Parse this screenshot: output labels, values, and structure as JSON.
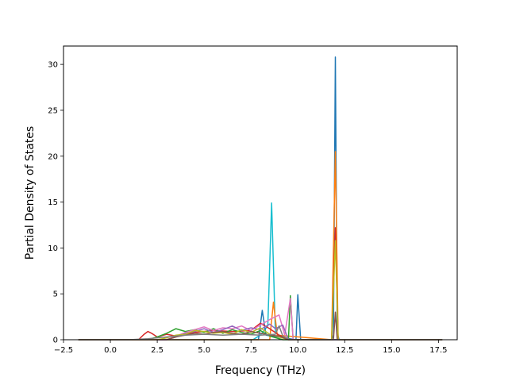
{
  "chart_data": {
    "type": "line",
    "title": "",
    "xlabel": "Frequency (THz)",
    "ylabel": "Partial Density of States",
    "xlim": [
      -2.5,
      18.5
    ],
    "ylim": [
      0,
      32
    ],
    "grid": false,
    "legend": "none",
    "x_ticks": [
      -2.5,
      0.0,
      2.5,
      5.0,
      7.5,
      10.0,
      12.5,
      15.0,
      17.5
    ],
    "x_tick_labels": [
      "−2.5",
      "0.0",
      "2.5",
      "5.0",
      "7.5",
      "10.0",
      "12.5",
      "15.0",
      "17.5"
    ],
    "y_ticks": [
      0,
      5,
      10,
      15,
      20,
      25,
      30
    ],
    "y_tick_labels": [
      "0",
      "5",
      "10",
      "15",
      "20",
      "25",
      "30"
    ],
    "colors": [
      "#1f77b4",
      "#ff7f0e",
      "#2ca02c",
      "#d62728",
      "#9467bd",
      "#8c564b",
      "#e377c2",
      "#7f7f7f",
      "#bcbd22",
      "#17becf"
    ],
    "series": [
      {
        "color": "#17becf",
        "points": [
          [
            -1.7,
            0
          ],
          [
            7.6,
            0
          ],
          [
            8.0,
            0.5
          ],
          [
            8.4,
            1.5
          ],
          [
            8.6,
            14.9
          ],
          [
            8.8,
            0.8
          ],
          [
            9.1,
            0.3
          ],
          [
            9.5,
            0
          ],
          [
            17.7,
            0
          ]
        ]
      },
      {
        "color": "#1f77b4",
        "points": [
          [
            -1.7,
            0
          ],
          [
            7.9,
            0
          ],
          [
            8.1,
            3.2
          ],
          [
            8.3,
            0.5
          ],
          [
            9.9,
            0
          ],
          [
            10.0,
            4.9
          ],
          [
            10.15,
            0
          ],
          [
            11.8,
            0
          ],
          [
            11.9,
            0.5
          ],
          [
            12.0,
            30.8
          ],
          [
            12.1,
            0.8
          ],
          [
            12.2,
            0
          ],
          [
            17.7,
            0
          ]
        ]
      },
      {
        "color": "#ff7f0e",
        "points": [
          [
            -1.7,
            0
          ],
          [
            8.5,
            0
          ],
          [
            8.7,
            4.1
          ],
          [
            8.9,
            0.5
          ],
          [
            11.8,
            0
          ],
          [
            12.0,
            20.5
          ],
          [
            12.15,
            0
          ],
          [
            17.7,
            0
          ]
        ]
      },
      {
        "color": "#d62728",
        "points": [
          [
            -1.7,
            0
          ],
          [
            1.5,
            0
          ],
          [
            1.8,
            0.6
          ],
          [
            2.0,
            0.9
          ],
          [
            2.2,
            0.7
          ],
          [
            2.5,
            0.3
          ],
          [
            3.0,
            0.6
          ],
          [
            3.5,
            0.4
          ],
          [
            4.5,
            0.8
          ],
          [
            5.5,
            1.0
          ],
          [
            6.5,
            0.9
          ],
          [
            7.5,
            1.0
          ],
          [
            8.0,
            1.8
          ],
          [
            8.5,
            1.2
          ],
          [
            9.0,
            0.5
          ],
          [
            9.5,
            0
          ],
          [
            11.8,
            0
          ],
          [
            12.0,
            12.2
          ],
          [
            12.15,
            0
          ],
          [
            17.7,
            0
          ]
        ]
      },
      {
        "color": "#2ca02c",
        "points": [
          [
            -1.7,
            0
          ],
          [
            2.0,
            0
          ],
          [
            2.5,
            0.3
          ],
          [
            3.0,
            0.7
          ],
          [
            3.5,
            1.2
          ],
          [
            4.0,
            0.9
          ],
          [
            4.5,
            1.1
          ],
          [
            5.0,
            0.8
          ],
          [
            5.5,
            1.2
          ],
          [
            6.0,
            0.7
          ],
          [
            6.5,
            1.1
          ],
          [
            7.0,
            0.8
          ],
          [
            7.5,
            0.6
          ],
          [
            8.0,
            1.0
          ],
          [
            8.5,
            0.4
          ],
          [
            9.2,
            0
          ],
          [
            9.5,
            0
          ],
          [
            9.6,
            4.8
          ],
          [
            9.75,
            0
          ],
          [
            17.7,
            0
          ]
        ]
      },
      {
        "color": "#e377c2",
        "points": [
          [
            -1.7,
            0
          ],
          [
            3.0,
            0
          ],
          [
            3.5,
            0.4
          ],
          [
            4.0,
            0.8
          ],
          [
            4.5,
            1.1
          ],
          [
            5.0,
            1.4
          ],
          [
            5.5,
            1.0
          ],
          [
            6.0,
            1.3
          ],
          [
            6.5,
            1.2
          ],
          [
            7.0,
            1.5
          ],
          [
            7.5,
            1.0
          ],
          [
            8.0,
            1.6
          ],
          [
            8.5,
            2.2
          ],
          [
            9.0,
            2.7
          ],
          [
            9.3,
            0.5
          ],
          [
            9.6,
            4.5
          ],
          [
            9.75,
            0
          ],
          [
            17.7,
            0
          ]
        ]
      },
      {
        "color": "#9467bd",
        "points": [
          [
            -1.7,
            0
          ],
          [
            3.0,
            0
          ],
          [
            3.5,
            0.3
          ],
          [
            4.0,
            0.7
          ],
          [
            4.5,
            0.9
          ],
          [
            5.0,
            1.2
          ],
          [
            5.5,
            0.8
          ],
          [
            6.0,
            1.1
          ],
          [
            6.5,
            1.5
          ],
          [
            7.0,
            1.0
          ],
          [
            7.5,
            1.3
          ],
          [
            8.0,
            1.1
          ],
          [
            8.5,
            1.7
          ],
          [
            8.8,
            1.2
          ],
          [
            9.2,
            1.6
          ],
          [
            9.5,
            0
          ],
          [
            17.7,
            0
          ]
        ]
      },
      {
        "color": "#bcbd22",
        "points": [
          [
            -1.7,
            0
          ],
          [
            2.5,
            0
          ],
          [
            3.0,
            0.2
          ],
          [
            3.5,
            0.5
          ],
          [
            4.0,
            0.6
          ],
          [
            4.5,
            1.0
          ],
          [
            5.0,
            0.9
          ],
          [
            5.5,
            0.7
          ],
          [
            6.0,
            0.8
          ],
          [
            6.5,
            0.6
          ],
          [
            7.0,
            1.1
          ],
          [
            7.5,
            0.8
          ],
          [
            8.0,
            1.3
          ],
          [
            8.5,
            0.6
          ],
          [
            9.0,
            0.3
          ],
          [
            9.5,
            0
          ],
          [
            11.8,
            0
          ],
          [
            12.0,
            10.8
          ],
          [
            12.15,
            0
          ],
          [
            17.7,
            0
          ]
        ]
      },
      {
        "color": "#8c564b",
        "points": [
          [
            -1.7,
            0
          ],
          [
            3.0,
            0
          ],
          [
            3.5,
            0.3
          ],
          [
            4.0,
            0.5
          ],
          [
            4.5,
            0.7
          ],
          [
            5.0,
            0.6
          ],
          [
            5.5,
            0.8
          ],
          [
            6.0,
            0.9
          ],
          [
            6.5,
            0.7
          ],
          [
            7.0,
            0.6
          ],
          [
            7.5,
            0.9
          ],
          [
            8.0,
            0.7
          ],
          [
            8.5,
            0.5
          ],
          [
            9.0,
            0.4
          ],
          [
            9.5,
            0
          ],
          [
            11.9,
            0
          ],
          [
            12.0,
            3.0
          ],
          [
            12.1,
            0
          ],
          [
            17.7,
            0
          ]
        ]
      },
      {
        "color": "#7f7f7f",
        "points": [
          [
            -1.7,
            0
          ],
          [
            1.0,
            0
          ],
          [
            2.0,
            0.1
          ],
          [
            3.0,
            0.3
          ],
          [
            4.0,
            0.5
          ],
          [
            5.0,
            0.6
          ],
          [
            6.0,
            0.5
          ],
          [
            7.0,
            0.6
          ],
          [
            8.0,
            0.5
          ],
          [
            8.8,
            0.6
          ],
          [
            9.0,
            1.5
          ],
          [
            9.2,
            0.4
          ],
          [
            9.6,
            0
          ],
          [
            17.7,
            0
          ]
        ]
      }
    ]
  }
}
